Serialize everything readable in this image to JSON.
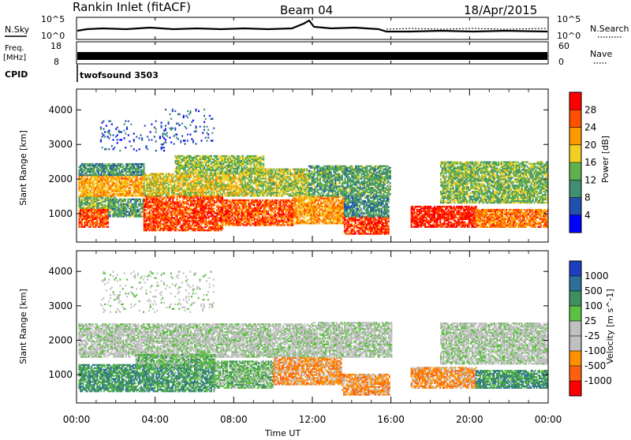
{
  "header": {
    "station": "Rankin Inlet (fitACF)",
    "beam": "Beam 04",
    "date": "18/Apr/2015"
  },
  "status_panels": {
    "nsky_label": "N.Sky",
    "nsearch_label": "N.Search",
    "nsky_ticks": [
      "10^5",
      "10^0"
    ],
    "nsearch_ticks": [
      "10^5",
      "10^0"
    ],
    "freq_label": "Freq.",
    "freq_unit": "[MHz]",
    "freq_ticks": [
      "18",
      "8"
    ],
    "nave_label": "Nave",
    "nave_ticks": [
      "60",
      "0"
    ],
    "cpid_label": "CPID",
    "cpid_value": "twofsound 3503"
  },
  "x_axis": {
    "title": "Time UT",
    "ticks": [
      "00:00",
      "04:00",
      "08:00",
      "12:00",
      "16:00",
      "20:00",
      "00:00"
    ]
  },
  "colors": {
    "power_scale": [
      "#0000ff",
      "#2050b0",
      "#3f8f70",
      "#5fb04f",
      "#f0d020",
      "#ff9900",
      "#ff5000",
      "#ff0000"
    ],
    "velocity_scale": [
      "#1e3fc0",
      "#2e6f9a",
      "#3f9060",
      "#5cc040",
      "#c0c0c0",
      "#c0c0c0",
      "#ff9000",
      "#ff6010",
      "#ff0000"
    ]
  },
  "chart_data": [
    {
      "type": "heatmap",
      "panel": "power",
      "ylabel": "Slant Range [km]",
      "xlabel": "",
      "xlim": [
        0,
        24
      ],
      "ylim": [
        180,
        4600
      ],
      "yticks": [
        "1000",
        "2000",
        "3000",
        "4000"
      ],
      "colorbar": {
        "label": "Power [dB]",
        "ticks": [
          "4",
          "8",
          "12",
          "16",
          "20",
          "24",
          "28"
        ],
        "range": [
          0,
          32
        ]
      },
      "regions": [
        {
          "t0": 0.1,
          "t1": 1.6,
          "r0": 600,
          "r1": 1150,
          "value": 27
        },
        {
          "t0": 0.1,
          "t1": 2.0,
          "r0": 1150,
          "r1": 1500,
          "value": 14
        },
        {
          "t0": 0.1,
          "t1": 3.4,
          "r0": 1500,
          "r1": 2100,
          "value": 21
        },
        {
          "t0": 0.1,
          "t1": 3.4,
          "r0": 2100,
          "r1": 2450,
          "value": 11
        },
        {
          "t0": 1.6,
          "t1": 3.4,
          "r0": 900,
          "r1": 1400,
          "value": 12
        },
        {
          "t0": 3.4,
          "t1": 7.4,
          "r0": 500,
          "r1": 1500,
          "value": 27
        },
        {
          "t0": 3.4,
          "t1": 8.4,
          "r0": 1500,
          "r1": 2150,
          "value": 18
        },
        {
          "t0": 5.0,
          "t1": 9.5,
          "r0": 2150,
          "r1": 2650,
          "value": 15
        },
        {
          "t0": 7.4,
          "t1": 11.0,
          "r0": 650,
          "r1": 1400,
          "value": 26
        },
        {
          "t0": 8.4,
          "t1": 11.8,
          "r0": 1500,
          "r1": 2300,
          "value": 16
        },
        {
          "t0": 11.0,
          "t1": 13.6,
          "r0": 700,
          "r1": 1500,
          "value": 22
        },
        {
          "t0": 11.8,
          "t1": 16.0,
          "r0": 1500,
          "r1": 2400,
          "value": 12
        },
        {
          "t0": 13.6,
          "t1": 15.9,
          "r0": 400,
          "r1": 900,
          "value": 28
        },
        {
          "t0": 13.6,
          "t1": 15.9,
          "r0": 900,
          "r1": 1500,
          "value": 10
        },
        {
          "t0": 17.0,
          "t1": 20.3,
          "r0": 600,
          "r1": 1200,
          "value": 29
        },
        {
          "t0": 20.3,
          "t1": 24.0,
          "r0": 600,
          "r1": 1100,
          "value": 24
        },
        {
          "t0": 18.5,
          "t1": 24.0,
          "r0": 1300,
          "r1": 2500,
          "value": 14
        },
        {
          "t0": 1.2,
          "t1": 4.5,
          "r0": 2800,
          "r1": 3700,
          "value": 5
        },
        {
          "t0": 4.5,
          "t1": 7.0,
          "r0": 3000,
          "r1": 4000,
          "value": 7
        }
      ]
    },
    {
      "type": "heatmap",
      "panel": "velocity",
      "ylabel": "Slant Range [km]",
      "xlabel": "Time UT",
      "xlim": [
        0,
        24
      ],
      "ylim": [
        180,
        4600
      ],
      "yticks": [
        "1000",
        "2000",
        "3000",
        "4000"
      ],
      "colorbar": {
        "label": "Velocity [m s^-1]",
        "ticks": [
          "1000",
          "500",
          "100",
          "25",
          "-25",
          "-100",
          "-500",
          "-1000"
        ]
      },
      "regions": [
        {
          "t0": 0.1,
          "t1": 7.0,
          "r0": 500,
          "r1": 1300,
          "class": 2
        },
        {
          "t0": 0.1,
          "t1": 12.0,
          "r0": 1500,
          "r1": 2450,
          "class": 4
        },
        {
          "t0": 3.0,
          "t1": 7.0,
          "r0": 1200,
          "r1": 1600,
          "class": 3
        },
        {
          "t0": 7.0,
          "t1": 10.0,
          "r0": 600,
          "r1": 1400,
          "class": 3
        },
        {
          "t0": 10.0,
          "t1": 13.5,
          "r0": 700,
          "r1": 1500,
          "class": 6
        },
        {
          "t0": 12.0,
          "t1": 16.0,
          "r0": 1500,
          "r1": 2500,
          "class": 4
        },
        {
          "t0": 13.5,
          "t1": 15.9,
          "r0": 400,
          "r1": 1000,
          "class": 6
        },
        {
          "t0": 17.0,
          "t1": 20.3,
          "r0": 600,
          "r1": 1200,
          "class": 6
        },
        {
          "t0": 20.3,
          "t1": 24.0,
          "r0": 600,
          "r1": 1100,
          "class": 2
        },
        {
          "t0": 18.5,
          "t1": 24.0,
          "r0": 1300,
          "r1": 2500,
          "class": 4
        },
        {
          "t0": 1.2,
          "t1": 7.0,
          "r0": 2800,
          "r1": 4000,
          "class": 4
        }
      ]
    }
  ]
}
